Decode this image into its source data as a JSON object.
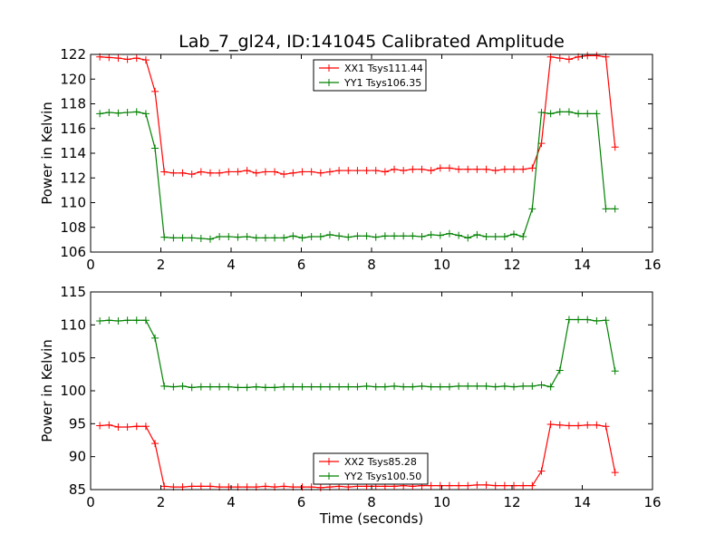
{
  "chart_data": [
    {
      "type": "line",
      "title": "Lab_7_gl24, ID:141045 Calibrated Amplitude",
      "xlabel": "",
      "ylabel": "Power in Kelvin",
      "xlim": [
        0,
        16
      ],
      "ylim": [
        106,
        122
      ],
      "xticks": [
        0,
        2,
        4,
        6,
        8,
        10,
        12,
        14,
        16
      ],
      "yticks": [
        106,
        108,
        110,
        112,
        114,
        116,
        118,
        120,
        122
      ],
      "xtick_labels": [
        "0",
        "2",
        "4",
        "6",
        "8",
        "10",
        "12",
        "14",
        "16"
      ],
      "ytick_labels": [
        "106",
        "108",
        "110",
        "112",
        "114",
        "116",
        "118",
        "120",
        "122"
      ],
      "legend_position": "upper-center",
      "x": [
        0.262,
        0.524,
        0.786,
        1.048,
        1.31,
        1.572,
        1.834,
        2.096,
        2.358,
        2.62,
        2.882,
        3.144,
        3.406,
        3.668,
        3.93,
        4.192,
        4.454,
        4.716,
        4.978,
        5.24,
        5.502,
        5.764,
        6.026,
        6.288,
        6.55,
        6.812,
        7.074,
        7.336,
        7.598,
        7.86,
        8.122,
        8.384,
        8.646,
        8.908,
        9.17,
        9.432,
        9.694,
        9.956,
        10.218,
        10.48,
        10.742,
        11.004,
        11.266,
        11.528,
        11.79,
        12.052,
        12.314,
        12.576,
        12.838,
        13.1,
        13.362,
        13.624,
        13.886,
        14.148,
        14.41,
        14.672,
        14.934
      ],
      "series": [
        {
          "name": "XX1 Tsys111.44",
          "color": "#ff0000",
          "values": [
            121.8,
            121.75,
            121.7,
            121.6,
            121.7,
            121.55,
            119.0,
            112.5,
            112.4,
            112.4,
            112.3,
            112.5,
            112.4,
            112.4,
            112.5,
            112.5,
            112.6,
            112.4,
            112.5,
            112.5,
            112.3,
            112.4,
            112.5,
            112.5,
            112.4,
            112.5,
            112.6,
            112.6,
            112.6,
            112.6,
            112.6,
            112.5,
            112.7,
            112.6,
            112.7,
            112.7,
            112.6,
            112.8,
            112.8,
            112.7,
            112.7,
            112.7,
            112.7,
            112.6,
            112.7,
            112.7,
            112.7,
            112.8,
            114.8,
            121.8,
            121.7,
            121.6,
            121.8,
            121.9,
            121.9,
            121.8,
            114.5
          ]
        },
        {
          "name": "YY1 Tsys106.35",
          "color": "#008000",
          "values": [
            117.2,
            117.3,
            117.25,
            117.3,
            117.35,
            117.2,
            114.4,
            107.2,
            107.15,
            107.15,
            107.15,
            107.1,
            107.05,
            107.25,
            107.25,
            107.2,
            107.25,
            107.15,
            107.15,
            107.15,
            107.15,
            107.3,
            107.15,
            107.25,
            107.25,
            107.4,
            107.3,
            107.2,
            107.3,
            107.3,
            107.2,
            107.3,
            107.3,
            107.3,
            107.3,
            107.25,
            107.4,
            107.35,
            107.5,
            107.35,
            107.15,
            107.4,
            107.25,
            107.25,
            107.25,
            107.45,
            107.25,
            109.5,
            117.3,
            117.2,
            117.35,
            117.35,
            117.2,
            117.2,
            117.2,
            109.5,
            109.5
          ]
        }
      ]
    },
    {
      "type": "line",
      "title": "",
      "xlabel": "Time (seconds)",
      "ylabel": "Power in Kelvin",
      "xlim": [
        0,
        16
      ],
      "ylim": [
        85,
        115
      ],
      "xticks": [
        0,
        2,
        4,
        6,
        8,
        10,
        12,
        14,
        16
      ],
      "yticks": [
        85,
        90,
        95,
        100,
        105,
        110,
        115
      ],
      "xtick_labels": [
        "0",
        "2",
        "4",
        "6",
        "8",
        "10",
        "12",
        "14",
        "16"
      ],
      "ytick_labels": [
        "85",
        "90",
        "95",
        "100",
        "105",
        "110",
        "115"
      ],
      "legend_position": "lower-center",
      "x": [
        0.262,
        0.524,
        0.786,
        1.048,
        1.31,
        1.572,
        1.834,
        2.096,
        2.358,
        2.62,
        2.882,
        3.144,
        3.406,
        3.668,
        3.93,
        4.192,
        4.454,
        4.716,
        4.978,
        5.24,
        5.502,
        5.764,
        6.026,
        6.288,
        6.55,
        6.812,
        7.074,
        7.336,
        7.598,
        7.86,
        8.122,
        8.384,
        8.646,
        8.908,
        9.17,
        9.432,
        9.694,
        9.956,
        10.218,
        10.48,
        10.742,
        11.004,
        11.266,
        11.528,
        11.79,
        12.052,
        12.314,
        12.576,
        12.838,
        13.1,
        13.362,
        13.624,
        13.886,
        14.148,
        14.41,
        14.672,
        14.934
      ],
      "series": [
        {
          "name": "XX2 Tsys85.28",
          "color": "#ff0000",
          "values": [
            94.7,
            94.8,
            94.5,
            94.5,
            94.6,
            94.6,
            92.0,
            85.5,
            85.4,
            85.4,
            85.5,
            85.5,
            85.5,
            85.4,
            85.4,
            85.4,
            85.4,
            85.4,
            85.5,
            85.4,
            85.5,
            85.4,
            85.4,
            85.4,
            85.3,
            85.4,
            85.5,
            85.4,
            85.5,
            85.5,
            85.5,
            85.5,
            85.5,
            85.6,
            85.5,
            85.6,
            85.6,
            85.6,
            85.6,
            85.6,
            85.6,
            85.7,
            85.7,
            85.6,
            85.6,
            85.6,
            85.6,
            85.6,
            87.8,
            94.9,
            94.8,
            94.7,
            94.7,
            94.8,
            94.8,
            94.6,
            87.6
          ]
        },
        {
          "name": "YY2 Tsys100.50",
          "color": "#008000",
          "values": [
            110.6,
            110.7,
            110.6,
            110.7,
            110.7,
            110.7,
            108.0,
            100.7,
            100.6,
            100.7,
            100.5,
            100.6,
            100.6,
            100.6,
            100.6,
            100.5,
            100.5,
            100.6,
            100.5,
            100.5,
            100.6,
            100.6,
            100.6,
            100.6,
            100.6,
            100.6,
            100.6,
            100.6,
            100.6,
            100.7,
            100.6,
            100.6,
            100.7,
            100.6,
            100.6,
            100.7,
            100.6,
            100.6,
            100.6,
            100.7,
            100.7,
            100.7,
            100.7,
            100.6,
            100.7,
            100.6,
            100.7,
            100.7,
            100.9,
            100.6,
            103.1,
            110.8,
            110.8,
            110.8,
            110.6,
            110.7,
            103.0
          ]
        }
      ]
    }
  ]
}
